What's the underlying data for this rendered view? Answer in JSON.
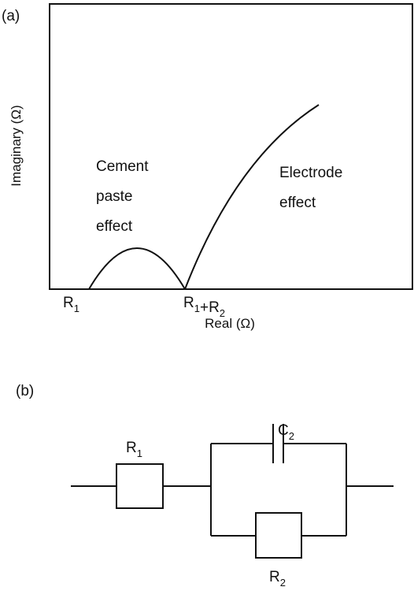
{
  "panel_a": {
    "label": "(a)",
    "y_axis_title": "Imaginary (Ω)",
    "x_axis_title": "Real (Ω)",
    "annotations": [
      {
        "lines": [
          "Cement",
          "paste",
          "effect"
        ]
      },
      {
        "lines": [
          "Electrode",
          "effect"
        ]
      }
    ],
    "x_labels": [
      [
        {
          "text": "R",
          "sub": "1"
        }
      ],
      [
        {
          "text": "R",
          "sub": "1"
        },
        {
          "text": "+R",
          "sub": "2"
        }
      ]
    ]
  },
  "panel_b": {
    "label": "(b)",
    "components": [
      {
        "label": [
          {
            "text": "R",
            "sub": "1"
          }
        ]
      },
      {
        "label": [
          {
            "text": "C",
            "sub": "2"
          }
        ]
      },
      {
        "label": [
          {
            "text": "R",
            "sub": "2"
          }
        ]
      }
    ]
  }
}
